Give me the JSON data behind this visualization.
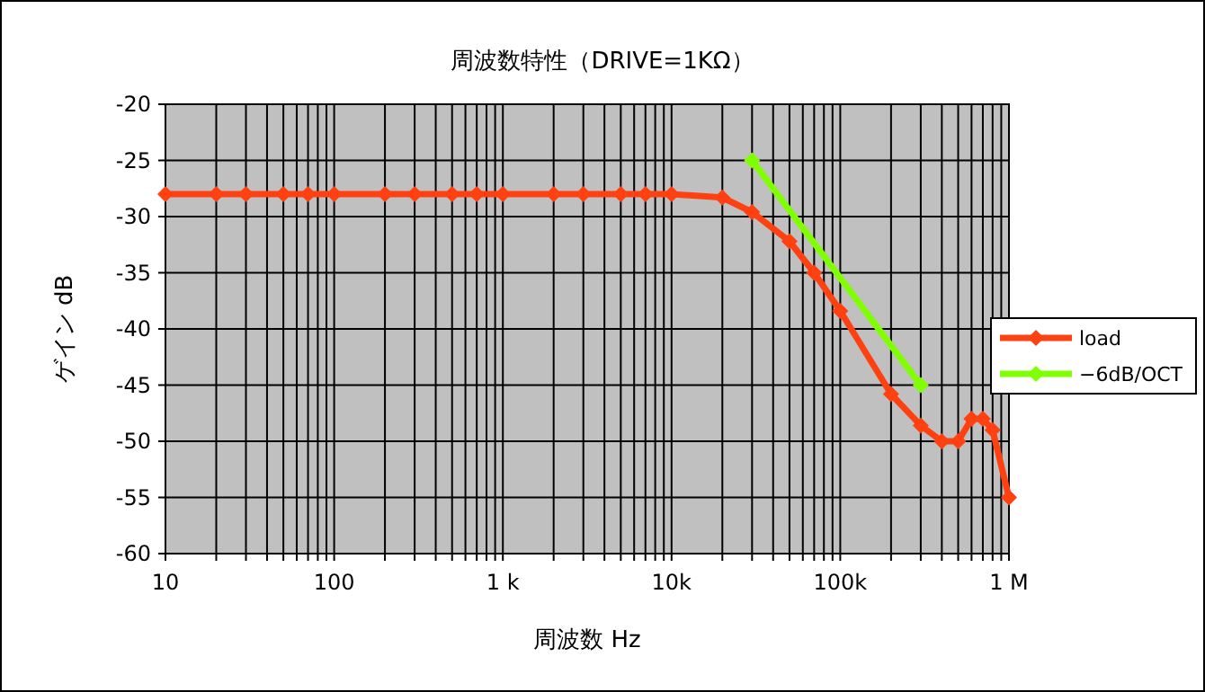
{
  "chart_data": {
    "type": "line",
    "title": "周波数特性（DRIVE=1KΩ）",
    "xlabel": "周波数 Hz",
    "ylabel": "ゲイン dB",
    "log": "x",
    "grid": true,
    "legend": "right",
    "marker": "diamond",
    "line_style": "solid",
    "xlim": [
      10,
      1000000
    ],
    "ylim": [
      -60,
      -20
    ],
    "xticks": [
      10,
      {
        "value": 20,
        "label": null
      },
      {
        "value": 30,
        "label": null
      },
      {
        "value": 40,
        "label": null
      },
      {
        "value": 50,
        "label": null
      },
      {
        "value": 60,
        "label": null
      },
      {
        "value": 70,
        "label": null
      },
      {
        "value": 80,
        "label": null
      },
      {
        "value": 90,
        "label": null
      },
      100,
      {
        "value": 200,
        "label": null
      },
      {
        "value": 300,
        "label": null
      },
      {
        "value": 400,
        "label": null
      },
      {
        "value": 500,
        "label": null
      },
      {
        "value": 600,
        "label": null
      },
      {
        "value": 700,
        "label": null
      },
      {
        "value": 800,
        "label": null
      },
      {
        "value": 900,
        "label": null
      },
      {
        "value": 1000,
        "label": "1 k"
      },
      {
        "value": 2000,
        "label": null
      },
      {
        "value": 3000,
        "label": null
      },
      {
        "value": 4000,
        "label": null
      },
      {
        "value": 5000,
        "label": null
      },
      {
        "value": 6000,
        "label": null
      },
      {
        "value": 7000,
        "label": null
      },
      {
        "value": 8000,
        "label": null
      },
      {
        "value": 9000,
        "label": null
      },
      {
        "value": 10000,
        "label": "10k"
      },
      {
        "value": 20000,
        "label": null
      },
      {
        "value": 30000,
        "label": null
      },
      {
        "value": 40000,
        "label": null
      },
      {
        "value": 50000,
        "label": null
      },
      {
        "value": 60000,
        "label": null
      },
      {
        "value": 70000,
        "label": null
      },
      {
        "value": 80000,
        "label": null
      },
      {
        "value": 90000,
        "label": null
      },
      {
        "value": 100000,
        "label": "100k"
      },
      {
        "value": 200000,
        "label": null
      },
      {
        "value": 300000,
        "label": null
      },
      {
        "value": 400000,
        "label": null
      },
      {
        "value": 500000,
        "label": null
      },
      {
        "value": 600000,
        "label": null
      },
      {
        "value": 700000,
        "label": null
      },
      {
        "value": 800000,
        "label": null
      },
      {
        "value": 900000,
        "label": null
      },
      {
        "value": 1000000,
        "label": "1 M"
      }
    ],
    "yticks": [
      -60,
      -55,
      -50,
      -45,
      -40,
      -35,
      -30,
      -25,
      -20
    ],
    "series": [
      {
        "name": "load",
        "color": "#ff4010",
        "x": [
          10,
          20,
          30,
          50,
          70,
          100,
          200,
          300,
          500,
          700,
          1000,
          2000,
          3000,
          5000,
          7000,
          10000,
          20000,
          30000,
          50000,
          70000,
          100000,
          200000,
          300000,
          400000,
          500000,
          600000,
          700000,
          800000,
          1000000
        ],
        "values": [
          -28,
          -28,
          -28,
          -28,
          -28,
          -28,
          -28,
          -28,
          -28,
          -28,
          -28,
          -28,
          -28,
          -28,
          -28,
          -28,
          -28.3,
          -29.6,
          -32.2,
          -35,
          -38.4,
          -45.8,
          -48.6,
          -50,
          -50,
          -48,
          -48,
          -49,
          -55
        ]
      },
      {
        "name": "−6dB/OCT",
        "color": "#80ff00",
        "x": [
          30000,
          300000
        ],
        "values": [
          -25,
          -45
        ]
      }
    ]
  }
}
